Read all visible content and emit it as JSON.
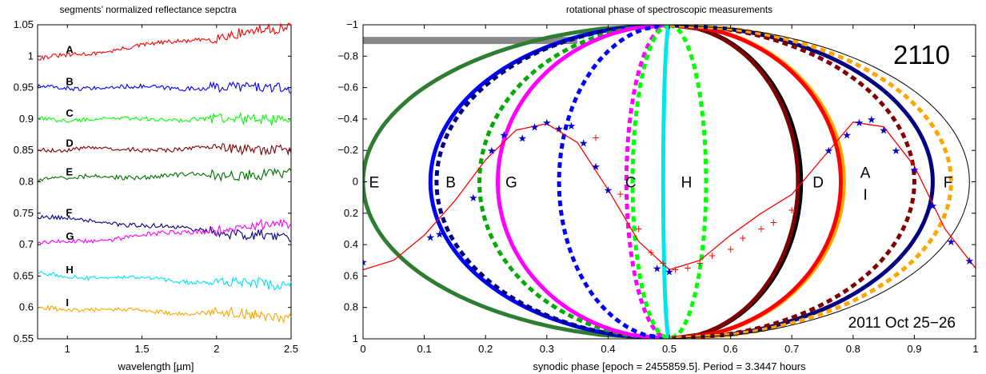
{
  "chart_data": [
    {
      "type": "line",
      "title": "segments’ normalized reflectance sepctra",
      "xlabel": "wavelength [µm]",
      "ylabel": "",
      "xlim": [
        0.8,
        2.5
      ],
      "ylim": [
        0.55,
        1.05
      ],
      "xticks": [
        "1",
        "1.5",
        "2",
        "2.5"
      ],
      "yticks": [
        "0.55",
        "0.6",
        "0.65",
        "0.7",
        "0.75",
        "0.8",
        "0.85",
        "0.9",
        "0.95",
        "1",
        "1.05"
      ],
      "series": [
        {
          "name": "A",
          "color": "#ff0000",
          "level": 0.995,
          "slope": 0.03
        },
        {
          "name": "B",
          "color": "#0000ff",
          "level": 0.95,
          "slope": 0.0
        },
        {
          "name": "C",
          "color": "#00ff00",
          "level": 0.9,
          "slope": 0.0
        },
        {
          "name": "D",
          "color": "#800000",
          "level": 0.852,
          "slope": 0.0
        },
        {
          "name": "E",
          "color": "#007000",
          "level": 0.805,
          "slope": 0.005
        },
        {
          "name": "F",
          "color": "#000080",
          "level": 0.745,
          "slope": -0.02
        },
        {
          "name": "G",
          "color": "#ff00ff",
          "level": 0.7,
          "slope": 0.02
        },
        {
          "name": "H",
          "color": "#00e5ee",
          "level": 0.652,
          "slope": -0.01
        },
        {
          "name": "I",
          "color": "#ffa500",
          "level": 0.6,
          "slope": -0.008
        }
      ]
    },
    {
      "type": "line",
      "title": "rotational phase of spectroscopic measurements",
      "xlabel": "synodic phase  [epoch = 2455859.5].  Period = 3.3447 hours",
      "ylabel": "",
      "xlim": [
        0,
        1
      ],
      "ylim": [
        -1,
        1
      ],
      "y_reversed": true,
      "xticks": [
        "0",
        "0.1",
        "0.2",
        "0.3",
        "0.4",
        "0.5",
        "0.6",
        "0.7",
        "0.8",
        "0.9",
        "1"
      ],
      "yticks": [
        "−1",
        "−0.8",
        "−0.6",
        "−0.4",
        "−0.2",
        "0",
        "0.2",
        "0.4",
        "0.6",
        "0.8",
        "1"
      ],
      "annotations": {
        "asteroid": "2110",
        "date": "2011 Oct 25−26"
      },
      "gray_bar": {
        "x": [
          0,
          0.35
        ],
        "y": -0.9
      },
      "series": [
        {
          "name": "E",
          "color": "#2e7d32",
          "phase": 0.0,
          "style": "solid"
        },
        {
          "name": "B",
          "color": "#0000ff",
          "phase": 0.11,
          "style": "solid"
        },
        {
          "name": "",
          "color": "#000080",
          "phase": 0.12,
          "style": "dashed"
        },
        {
          "name": "",
          "color": "#00aa00",
          "phase": 0.19,
          "style": "dashed"
        },
        {
          "name": "G",
          "color": "#ff00ff",
          "phase": 0.22,
          "style": "solid"
        },
        {
          "name": "",
          "color": "#0000ff",
          "phase": 0.32,
          "style": "dashed"
        },
        {
          "name": "",
          "color": "#ff00ff",
          "phase": 0.43,
          "style": "dashed"
        },
        {
          "name": "",
          "color": "#00ff00",
          "phase": 0.44,
          "style": "dashed"
        },
        {
          "name": "C",
          "color": "#00ff00",
          "phase": 0.56,
          "style": "dashed"
        },
        {
          "name": "H",
          "color": "#00e5ee",
          "phase": 0.49,
          "style": "solid"
        },
        {
          "name": "",
          "color": "#00e5ee",
          "phase": 0.71,
          "style": "dashed"
        },
        {
          "name": "D",
          "color": "#000000",
          "phase": 0.715,
          "style": "solid"
        },
        {
          "name": "",
          "color": "#800000",
          "phase": 0.71,
          "style": "solid"
        },
        {
          "name": "A",
          "color": "#ffa500",
          "phase": 0.785,
          "style": "solid"
        },
        {
          "name": "I",
          "color": "#ff0000",
          "phase": 0.78,
          "style": "solid"
        },
        {
          "name": "F",
          "color": "#000080",
          "phase": 0.93,
          "style": "solid"
        },
        {
          "name": "",
          "color": "#800000",
          "phase": 0.9,
          "style": "dashed"
        },
        {
          "name": "",
          "color": "#ffa500",
          "phase": 0.96,
          "style": "dashed"
        },
        {
          "name": "",
          "color": "#000000",
          "phase": 0.99,
          "style": "solid"
        }
      ],
      "lightcurve": {
        "color": "#ff0000",
        "x": [
          0.0,
          0.05,
          0.1,
          0.15,
          0.2,
          0.25,
          0.3,
          0.35,
          0.4,
          0.45,
          0.5,
          0.55,
          0.6,
          0.65,
          0.7,
          0.75,
          0.8,
          0.85,
          0.9,
          0.95,
          1.0
        ],
        "y": [
          0.56,
          0.5,
          0.34,
          0.12,
          -0.14,
          -0.33,
          -0.37,
          -0.25,
          0.05,
          0.38,
          0.56,
          0.5,
          0.34,
          0.2,
          0.08,
          -0.15,
          -0.38,
          -0.35,
          -0.1,
          0.3,
          0.55
        ]
      },
      "stars": {
        "color": "#0000cc",
        "x": [
          0.0,
          0.11,
          0.125,
          0.18,
          0.21,
          0.23,
          0.26,
          0.28,
          0.3,
          0.32,
          0.34,
          0.36,
          0.38,
          0.4,
          0.48,
          0.5,
          0.76,
          0.79,
          0.81,
          0.83,
          0.85,
          0.87,
          0.9,
          0.93,
          0.96,
          0.99
        ],
        "y": [
          0.51,
          0.35,
          0.33,
          0.1,
          -0.2,
          -0.3,
          -0.28,
          -0.35,
          -0.38,
          -0.34,
          -0.36,
          -0.25,
          -0.1,
          0.05,
          0.55,
          0.57,
          -0.2,
          -0.3,
          -0.38,
          -0.4,
          -0.33,
          -0.2,
          -0.08,
          0.15,
          0.38,
          0.5
        ]
      },
      "crosses": {
        "color": "#ff0000",
        "x": [
          0.38,
          0.42,
          0.45,
          0.47,
          0.49,
          0.51,
          0.53,
          0.55,
          0.57,
          0.6,
          0.62,
          0.65,
          0.67,
          0.7
        ],
        "y": [
          -0.28,
          0.08,
          0.3,
          0.45,
          0.52,
          0.56,
          0.55,
          0.52,
          0.47,
          0.43,
          0.36,
          0.3,
          0.26,
          0.18
        ]
      }
    }
  ]
}
